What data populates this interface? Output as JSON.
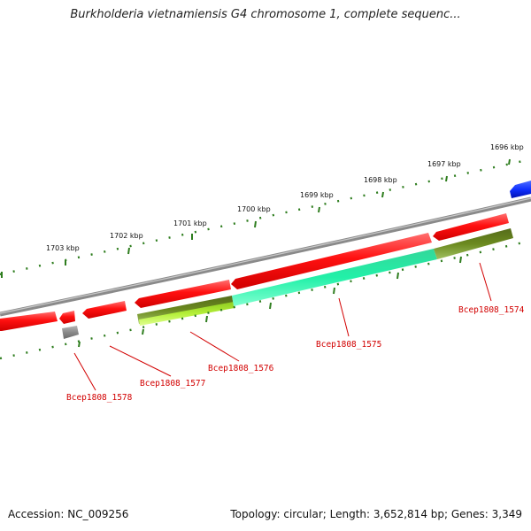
{
  "header": {
    "title": "Burkholderia vietnamiensis G4 chromosome 1, complete sequenc..."
  },
  "footer": {
    "accession": "Accession: NC_009256",
    "summary": "Topology: circular; Length: 3,652,814 bp; Genes: 3,349"
  },
  "scale": {
    "kbp_labels": [
      "1696 kbp",
      "1697 kbp",
      "1698 kbp",
      "1699 kbp",
      "1700 kbp",
      "1701 kbp",
      "1702 kbp",
      "1703 kbp"
    ]
  },
  "genes": [
    {
      "id": "Bcep1808_1574",
      "label": "Bcep1808_1574",
      "strand": "reverse",
      "color": "#6b8a1f"
    },
    {
      "id": "Bcep1808_1575",
      "label": "Bcep1808_1575",
      "strand": "reverse",
      "color": "#22f0a8"
    },
    {
      "id": "Bcep1808_1576",
      "label": "Bcep1808_1576",
      "strand": "reverse",
      "color": "#b5f03a"
    },
    {
      "id": "Bcep1808_1577",
      "label": "Bcep1808_1577",
      "strand": "forward",
      "color": "#ff1010"
    },
    {
      "id": "Bcep1808_1578",
      "label": "Bcep1808_1578",
      "strand": "reverse",
      "color": "#707070"
    }
  ],
  "colors": {
    "backbone": "#8a8a8a",
    "forward_gene": "#ff1010",
    "blue_gene": "#1030ff",
    "tick": "#2e7d1e",
    "label_red": "#d20000"
  }
}
